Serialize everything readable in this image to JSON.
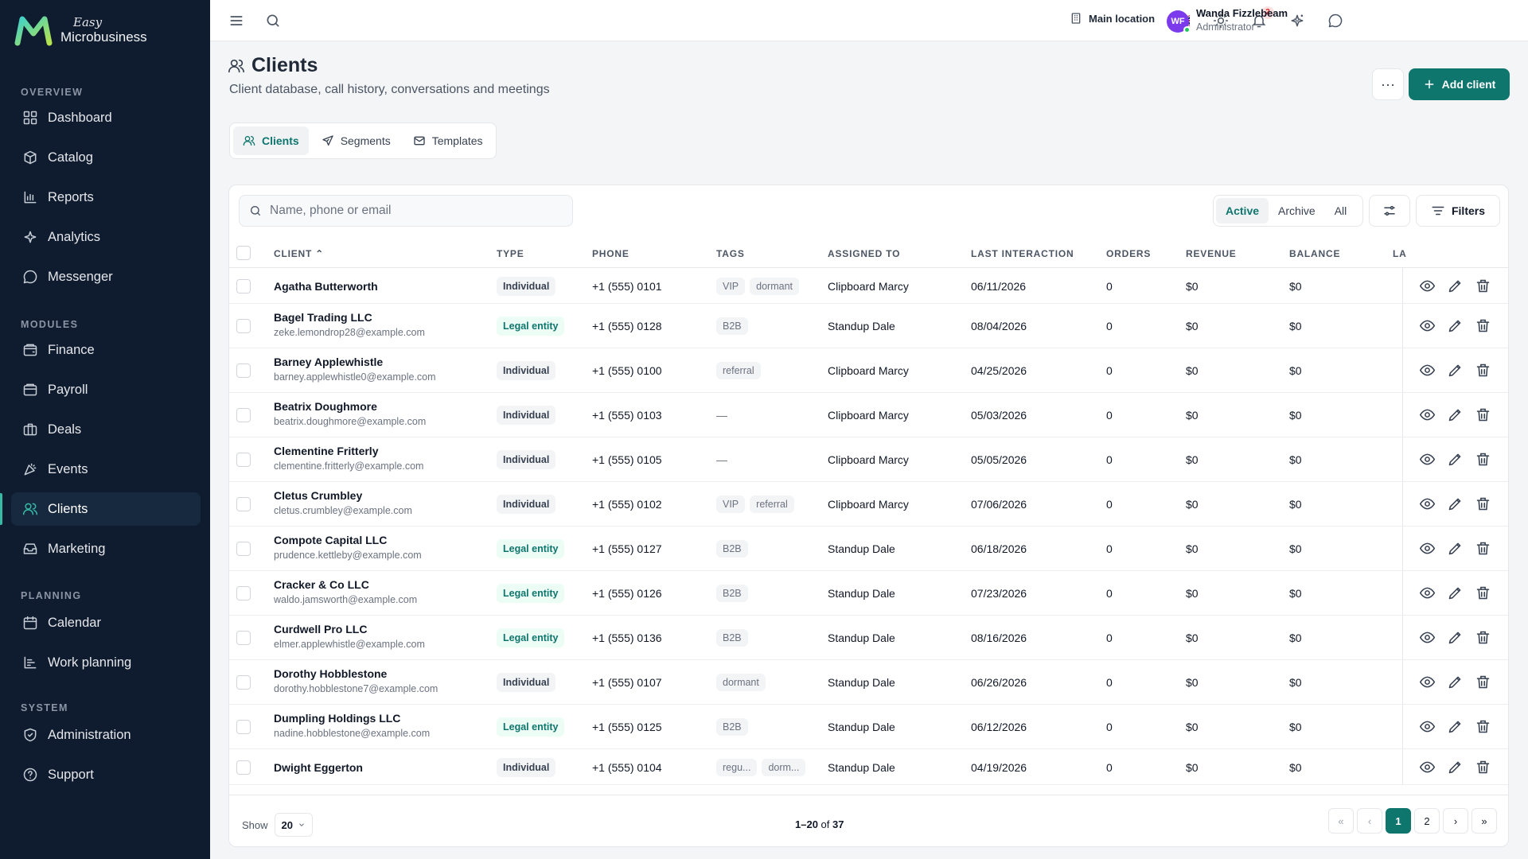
{
  "brand": {
    "easy": "Easy",
    "name": "Microbusiness"
  },
  "sidebar": {
    "sections": [
      {
        "title": "OVERVIEW",
        "items": [
          "Dashboard",
          "Catalog",
          "Reports",
          "Analytics",
          "Messenger"
        ]
      },
      {
        "title": "MODULES",
        "items": [
          "Finance",
          "Payroll",
          "Deals",
          "Events",
          "Clients",
          "Marketing"
        ]
      },
      {
        "title": "PLANNING",
        "items": [
          "Calendar",
          "Work planning"
        ]
      },
      {
        "title": "SYSTEM",
        "items": [
          "Administration",
          "Support"
        ]
      }
    ],
    "active": "Clients"
  },
  "topbar": {
    "location": "Main location",
    "notifications": "2",
    "user": {
      "initials": "WF",
      "name": "Wanda Fizzlebeam",
      "role": "Administrator"
    }
  },
  "header": {
    "title": "Clients",
    "subtitle": "Client database, call history, conversations and meetings",
    "more": "···",
    "add_label": "Add client"
  },
  "tabs": [
    "Clients",
    "Segments",
    "Templates"
  ],
  "toolbar": {
    "search_placeholder": "Name, phone or email",
    "status": [
      "Active",
      "Archive",
      "All"
    ],
    "filters_label": "Filters"
  },
  "columns": [
    "CLIENT",
    "TYPE",
    "PHONE",
    "TAGS",
    "ASSIGNED TO",
    "LAST INTERACTION",
    "ORDERS",
    "REVENUE",
    "BALANCE",
    "LA"
  ],
  "rows": [
    {
      "name": "Agatha Butterworth",
      "email": "",
      "type": "Individual",
      "phone": "+1 (555) 0101",
      "tags": [
        "VIP",
        "dormant"
      ],
      "assigned": "Clipboard Marcy",
      "last": "06/11/2026",
      "orders": "0",
      "revenue": "$0",
      "balance": "$0"
    },
    {
      "name": "Bagel Trading LLC",
      "email": "zeke.lemondrop28@example.com",
      "type": "Legal entity",
      "phone": "+1 (555) 0128",
      "tags": [
        "B2B"
      ],
      "assigned": "Standup Dale",
      "last": "08/04/2026",
      "orders": "0",
      "revenue": "$0",
      "balance": "$0"
    },
    {
      "name": "Barney Applewhistle",
      "email": "barney.applewhistle0@example.com",
      "type": "Individual",
      "phone": "+1 (555) 0100",
      "tags": [
        "referral"
      ],
      "assigned": "Clipboard Marcy",
      "last": "04/25/2026",
      "orders": "0",
      "revenue": "$0",
      "balance": "$0"
    },
    {
      "name": "Beatrix Doughmore",
      "email": "beatrix.doughmore@example.com",
      "type": "Individual",
      "phone": "+1 (555) 0103",
      "tags": [],
      "assigned": "Clipboard Marcy",
      "last": "05/03/2026",
      "orders": "0",
      "revenue": "$0",
      "balance": "$0"
    },
    {
      "name": "Clementine Fritterly",
      "email": "clementine.fritterly@example.com",
      "type": "Individual",
      "phone": "+1 (555) 0105",
      "tags": [],
      "assigned": "Clipboard Marcy",
      "last": "05/05/2026",
      "orders": "0",
      "revenue": "$0",
      "balance": "$0"
    },
    {
      "name": "Cletus Crumbley",
      "email": "cletus.crumbley@example.com",
      "type": "Individual",
      "phone": "+1 (555) 0102",
      "tags": [
        "VIP",
        "referral"
      ],
      "assigned": "Clipboard Marcy",
      "last": "07/06/2026",
      "orders": "0",
      "revenue": "$0",
      "balance": "$0"
    },
    {
      "name": "Compote Capital LLC",
      "email": "prudence.kettleby@example.com",
      "type": "Legal entity",
      "phone": "+1 (555) 0127",
      "tags": [
        "B2B"
      ],
      "assigned": "Standup Dale",
      "last": "06/18/2026",
      "orders": "0",
      "revenue": "$0",
      "balance": "$0"
    },
    {
      "name": "Cracker & Co LLC",
      "email": "waldo.jamsworth@example.com",
      "type": "Legal entity",
      "phone": "+1 (555) 0126",
      "tags": [
        "B2B"
      ],
      "assigned": "Standup Dale",
      "last": "07/23/2026",
      "orders": "0",
      "revenue": "$0",
      "balance": "$0"
    },
    {
      "name": "Curdwell Pro LLC",
      "email": "elmer.applewhistle@example.com",
      "type": "Legal entity",
      "phone": "+1 (555) 0136",
      "tags": [
        "B2B"
      ],
      "assigned": "Standup Dale",
      "last": "08/16/2026",
      "orders": "0",
      "revenue": "$0",
      "balance": "$0"
    },
    {
      "name": "Dorothy Hobblestone",
      "email": "dorothy.hobblestone7@example.com",
      "type": "Individual",
      "phone": "+1 (555) 0107",
      "tags": [
        "dormant"
      ],
      "assigned": "Standup Dale",
      "last": "06/26/2026",
      "orders": "0",
      "revenue": "$0",
      "balance": "$0"
    },
    {
      "name": "Dumpling Holdings LLC",
      "email": "nadine.hobblestone@example.com",
      "type": "Legal entity",
      "phone": "+1 (555) 0125",
      "tags": [
        "B2B"
      ],
      "assigned": "Standup Dale",
      "last": "06/12/2026",
      "orders": "0",
      "revenue": "$0",
      "balance": "$0"
    },
    {
      "name": "Dwight Eggerton",
      "email": "",
      "type": "Individual",
      "phone": "+1 (555) 0104",
      "tags": [
        "regu...",
        "dorm..."
      ],
      "assigned": "Standup Dale",
      "last": "04/19/2026",
      "orders": "0",
      "revenue": "$0",
      "balance": "$0"
    }
  ],
  "footer": {
    "show_label": "Show",
    "page_size": "20",
    "range": "1–20",
    "of": "of",
    "total": "37",
    "pages": [
      "1",
      "2"
    ]
  },
  "colors": {
    "accent": "#0f766e",
    "sidebar": "#0f1c2f",
    "active_nav": "#37b9a4"
  }
}
